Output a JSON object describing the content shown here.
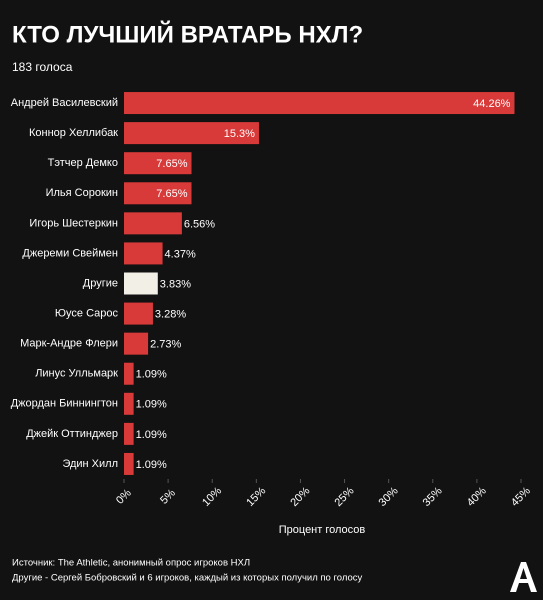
{
  "chart_data": {
    "type": "hbar",
    "title": "КТО ЛУЧШИЙ ВРАТАРЬ НХЛ?",
    "subtitle": "183 голоса",
    "categories": [
      "Андрей Василевский",
      "Коннор Хеллибак",
      "Тэтчер Демко",
      "Илья Сорокин",
      "Игорь Шестеркин",
      "Джереми Свеймен",
      "Другие",
      "Юусе Сарос",
      "Марк-Андре Флери",
      "Линус Улльмарк",
      "Джордан Биннингтон",
      "Джейк Оттинджер",
      "Эдин Хилл"
    ],
    "values": [
      44.26,
      15.3,
      7.65,
      7.65,
      6.56,
      4.37,
      3.83,
      3.28,
      2.73,
      1.09,
      1.09,
      1.09,
      1.09
    ],
    "value_labels": [
      "44.26%",
      "15.3%",
      "7.65%",
      "7.65%",
      "6.56%",
      "4.37%",
      "3.83%",
      "3.28%",
      "2.73%",
      "1.09%",
      "1.09%",
      "1.09%",
      "1.09%"
    ],
    "colors": [
      "#d83a3a",
      "#d83a3a",
      "#d83a3a",
      "#d83a3a",
      "#d83a3a",
      "#d83a3a",
      "#f2efe6",
      "#d83a3a",
      "#d83a3a",
      "#d83a3a",
      "#d83a3a",
      "#d83a3a",
      "#d83a3a"
    ],
    "xlim": [
      0,
      45
    ],
    "xticks": [
      {
        "value": 0,
        "label": "0%"
      },
      {
        "value": 5,
        "label": "5%"
      },
      {
        "value": 10,
        "label": "10%"
      },
      {
        "value": 15,
        "label": "15%"
      },
      {
        "value": 20,
        "label": "20%"
      },
      {
        "value": 25,
        "label": "25%"
      },
      {
        "value": 30,
        "label": "30%"
      },
      {
        "value": 35,
        "label": "35%"
      },
      {
        "value": 40,
        "label": "40%"
      },
      {
        "value": 45,
        "label": "45%"
      }
    ],
    "xlabel": "Процент голосов",
    "notes": [
      "Источник: The Athletic, анонимный опрос игроков НХЛ",
      "Другие - Сергей Бобровский и 6 игроков, каждый из которых получил по голосу"
    ]
  }
}
